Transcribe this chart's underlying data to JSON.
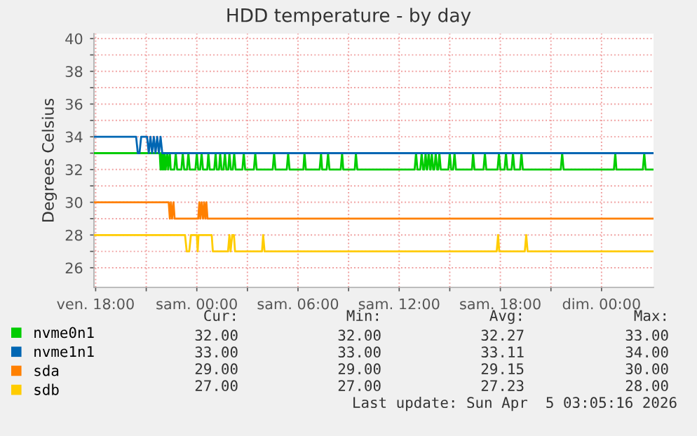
{
  "chart_data": {
    "type": "line",
    "title": "HDD temperature - by day",
    "ylabel": "Degrees Celsius",
    "xlim": [
      "2026-04-03T17:54",
      "2026-04-05T03:05"
    ],
    "ylim": [
      24.8,
      40.3
    ],
    "xticks": [
      {
        "value": "2026-04-03T18:00",
        "label": "ven. 18:00"
      },
      {
        "value": "2026-04-03T21:00",
        "label": null
      },
      {
        "value": "2026-04-04T00:00",
        "label": "sam. 00:00"
      },
      {
        "value": "2026-04-04T03:00",
        "label": null
      },
      {
        "value": "2026-04-04T06:00",
        "label": "sam. 06:00"
      },
      {
        "value": "2026-04-04T09:00",
        "label": null
      },
      {
        "value": "2026-04-04T12:00",
        "label": "sam. 12:00"
      },
      {
        "value": "2026-04-04T15:00",
        "label": null
      },
      {
        "value": "2026-04-04T18:00",
        "label": "sam. 18:00"
      },
      {
        "value": "2026-04-04T21:00",
        "label": null
      },
      {
        "value": "2026-04-05T00:00",
        "label": "dim. 00:00"
      }
    ],
    "yticks": [
      26,
      {
        "value": 27,
        "label": null
      },
      28,
      {
        "value": 29,
        "label": null
      },
      30,
      {
        "value": 31,
        "label": null
      },
      32,
      {
        "value": 33,
        "label": null
      },
      34,
      {
        "value": 35,
        "label": null
      },
      36,
      {
        "value": 37,
        "label": null
      },
      38,
      {
        "value": 39,
        "label": null
      },
      40
    ],
    "grid": true,
    "legend": "bottom",
    "series": [
      {
        "name": "nvme0n1",
        "color": "#00cc00",
        "x": [
          "2026-04-03T17:54",
          "2026-04-03T21:48",
          "2026-04-03T21:51",
          "2026-04-03T21:54",
          "2026-04-03T21:57",
          "2026-04-03T22:00",
          "2026-04-03T22:03",
          "2026-04-03T22:06",
          "2026-04-03T22:09",
          "2026-04-03T22:15",
          "2026-04-03T22:18",
          "2026-04-03T22:24",
          "2026-04-03T22:27",
          "2026-04-03T22:40",
          "2026-04-03T22:45",
          "2026-04-03T22:50",
          "2026-04-03T23:05",
          "2026-04-03T23:10",
          "2026-04-03T23:15",
          "2026-04-03T23:25",
          "2026-04-03T23:30",
          "2026-04-03T23:35",
          "2026-04-03T23:55",
          "2026-04-04T00:00",
          "2026-04-04T00:05",
          "2026-04-04T00:12",
          "2026-04-04T00:17",
          "2026-04-04T00:22",
          "2026-04-04T00:37",
          "2026-04-04T00:41",
          "2026-04-04T00:46",
          "2026-04-04T01:02",
          "2026-04-04T01:07",
          "2026-04-04T01:11",
          "2026-04-04T01:19",
          "2026-04-04T01:23",
          "2026-04-04T01:28",
          "2026-04-04T01:35",
          "2026-04-04T01:40",
          "2026-04-04T01:45",
          "2026-04-04T01:52",
          "2026-04-04T01:56",
          "2026-04-04T02:01",
          "2026-04-04T02:08",
          "2026-04-04T02:13",
          "2026-04-04T02:18",
          "2026-04-04T02:42",
          "2026-04-04T02:47",
          "2026-04-04T02:52",
          "2026-04-04T03:23",
          "2026-04-04T03:28",
          "2026-04-04T03:33",
          "2026-04-04T04:30",
          "2026-04-04T04:35",
          "2026-04-04T04:40",
          "2026-04-04T05:20",
          "2026-04-04T05:25",
          "2026-04-04T05:30",
          "2026-04-04T06:19",
          "2026-04-04T06:23",
          "2026-04-04T06:28",
          "2026-04-04T07:17",
          "2026-04-04T07:22",
          "2026-04-04T07:26",
          "2026-04-04T07:42",
          "2026-04-04T07:47",
          "2026-04-04T07:52",
          "2026-04-04T08:32",
          "2026-04-04T08:37",
          "2026-04-04T08:41",
          "2026-04-04T09:22",
          "2026-04-04T09:26",
          "2026-04-04T09:31",
          "2026-04-04T12:55",
          "2026-04-04T13:00",
          "2026-04-04T13:05",
          "2026-04-04T13:15",
          "2026-04-04T13:20",
          "2026-04-04T13:25",
          "2026-04-04T13:29",
          "2026-04-04T13:34",
          "2026-04-04T13:38",
          "2026-04-04T13:40",
          "2026-04-04T13:45",
          "2026-04-04T13:50",
          "2026-04-04T13:52",
          "2026-04-04T13:56",
          "2026-04-04T14:01",
          "2026-04-04T14:05",
          "2026-04-04T14:10",
          "2026-04-04T14:15",
          "2026-04-04T14:19",
          "2026-04-04T14:23",
          "2026-04-04T14:28",
          "2026-04-04T14:55",
          "2026-04-04T15:00",
          "2026-04-04T15:05",
          "2026-04-04T15:12",
          "2026-04-04T15:17",
          "2026-04-04T15:22",
          "2026-04-04T16:19",
          "2026-04-04T16:23",
          "2026-04-04T16:28",
          "2026-04-04T17:00",
          "2026-04-04T17:05",
          "2026-04-04T17:10",
          "2026-04-04T17:50",
          "2026-04-04T17:55",
          "2026-04-04T18:00",
          "2026-04-04T18:15",
          "2026-04-04T18:20",
          "2026-04-04T18:25",
          "2026-04-04T18:40",
          "2026-04-04T18:45",
          "2026-04-04T18:50",
          "2026-04-04T19:10",
          "2026-04-04T19:15",
          "2026-04-04T19:20",
          "2026-04-04T21:35",
          "2026-04-04T21:40",
          "2026-04-04T21:45",
          "2026-04-05T00:44",
          "2026-04-05T00:49",
          "2026-04-05T00:53",
          "2026-04-05T02:27",
          "2026-04-05T02:32",
          "2026-04-05T02:37",
          "2026-04-05T03:05"
        ],
        "values": [
          33,
          33,
          32,
          33,
          32,
          33,
          32,
          33,
          32,
          33,
          32,
          33,
          32,
          32,
          33,
          32,
          32,
          33,
          32,
          32,
          33,
          32,
          32,
          33,
          32,
          32,
          33,
          32,
          32,
          33,
          32,
          32,
          33,
          32,
          32,
          33,
          32,
          32,
          33,
          32,
          32,
          33,
          32,
          32,
          33,
          32,
          32,
          33,
          32,
          32,
          33,
          32,
          32,
          33,
          32,
          32,
          33,
          32,
          32,
          33,
          32,
          32,
          33,
          32,
          32,
          33,
          32,
          32,
          33,
          32,
          32,
          33,
          32,
          32,
          33,
          32,
          32,
          33,
          32,
          32,
          33,
          32,
          32,
          33,
          32,
          32,
          33,
          32,
          32,
          33,
          32,
          32,
          33,
          32,
          32,
          33,
          32,
          32,
          33,
          32,
          32,
          33,
          32,
          32,
          33,
          32,
          32,
          33,
          32,
          32,
          33,
          32,
          32,
          33,
          32,
          32,
          33,
          32,
          32,
          33,
          32,
          32,
          33,
          32,
          32,
          33,
          32,
          32
        ]
      },
      {
        "name": "nvme1n1",
        "color": "#0066b3",
        "x": [
          "2026-04-03T17:54",
          "2026-04-03T20:24",
          "2026-04-03T20:30",
          "2026-04-03T20:36",
          "2026-04-03T20:42",
          "2026-04-03T21:03",
          "2026-04-03T21:09",
          "2026-04-03T21:15",
          "2026-04-03T21:21",
          "2026-04-03T21:27",
          "2026-04-03T21:33",
          "2026-04-03T21:39",
          "2026-04-03T21:45",
          "2026-04-03T21:51",
          "2026-04-03T21:57",
          "2026-04-03T22:06",
          "2026-04-05T03:05"
        ],
        "values": [
          34,
          34,
          33,
          33,
          34,
          34,
          33,
          34,
          33,
          34,
          33,
          34,
          33,
          34,
          33,
          33,
          33
        ]
      },
      {
        "name": "sda",
        "color": "#ff8000",
        "x": [
          "2026-04-03T17:54",
          "2026-04-03T22:20",
          "2026-04-03T22:24",
          "2026-04-03T22:28",
          "2026-04-03T22:32",
          "2026-04-03T22:37",
          "2026-04-03T22:41",
          "2026-04-03T22:48",
          "2026-04-04T00:05",
          "2026-04-04T00:09",
          "2026-04-04T00:13",
          "2026-04-04T00:17",
          "2026-04-04T00:22",
          "2026-04-04T00:26",
          "2026-04-04T00:30",
          "2026-04-04T00:34",
          "2026-04-04T00:38",
          "2026-04-04T00:47",
          "2026-04-05T03:05"
        ],
        "values": [
          30,
          30,
          29,
          30,
          29,
          30,
          29,
          29,
          29,
          30,
          29,
          30,
          29,
          30,
          29,
          30,
          29,
          29,
          29
        ]
      },
      {
        "name": "sdb",
        "color": "#ffcc00",
        "x": [
          "2026-04-03T17:54",
          "2026-04-03T23:18",
          "2026-04-03T23:24",
          "2026-04-03T23:33",
          "2026-04-03T23:39",
          "2026-04-04T00:00",
          "2026-04-04T00:03",
          "2026-04-04T00:06",
          "2026-04-04T00:53",
          "2026-04-04T00:57",
          "2026-04-04T01:51",
          "2026-04-04T01:56",
          "2026-04-04T02:00",
          "2026-04-04T02:06",
          "2026-04-04T02:12",
          "2026-04-04T02:16",
          "2026-04-04T03:52",
          "2026-04-04T03:56",
          "2026-04-04T04:01",
          "2026-04-04T17:47",
          "2026-04-04T17:52",
          "2026-04-04T17:56",
          "2026-04-04T19:27",
          "2026-04-04T19:32",
          "2026-04-04T19:37",
          "2026-04-05T03:05"
        ],
        "values": [
          28,
          28,
          27,
          27,
          28,
          28,
          27,
          28,
          28,
          27,
          27,
          28,
          27,
          28,
          28,
          27,
          27,
          28,
          27,
          27,
          28,
          27,
          27,
          28,
          27,
          27
        ]
      }
    ],
    "annotations": [
      "Cur:",
      "Min:",
      "Avg:",
      "Max:",
      "32.00",
      "32.00",
      "32.27",
      "33.00",
      "33.00",
      "33.00",
      "33.11",
      "34.00",
      "29.00",
      "29.00",
      "29.15",
      "30.00",
      "27.00",
      "27.00",
      "27.23",
      "28.00",
      "Last update: Sun Apr  5 03:05:16 2026"
    ]
  }
}
